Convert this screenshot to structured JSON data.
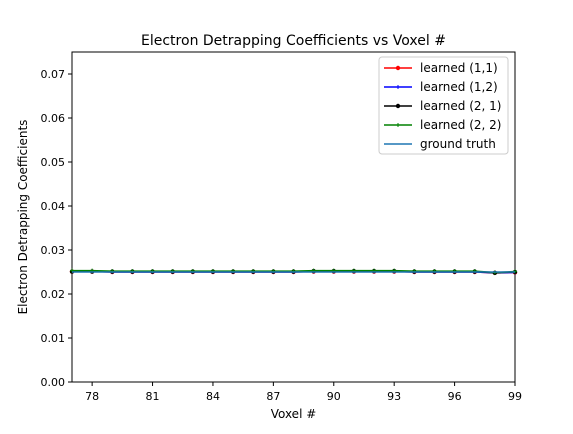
{
  "chart_data": {
    "type": "line",
    "title": "Electron Detrapping Coefficients vs Voxel #",
    "xlabel": "Voxel #",
    "ylabel": "Electron Detrapping Coefficients",
    "xlim": [
      77,
      99
    ],
    "ylim": [
      0.0,
      0.075
    ],
    "xticks": [
      78,
      81,
      84,
      87,
      90,
      93,
      96,
      99
    ],
    "yticks": [
      0.0,
      0.01,
      0.02,
      0.03,
      0.04,
      0.05,
      0.06,
      0.07
    ],
    "ytick_labels": [
      "0.00",
      "0.01",
      "0.02",
      "0.03",
      "0.04",
      "0.05",
      "0.06",
      "0.07"
    ],
    "grid": false,
    "legend_position": "top-right",
    "x": [
      77,
      78,
      79,
      80,
      81,
      82,
      83,
      84,
      85,
      86,
      87,
      88,
      89,
      90,
      91,
      92,
      93,
      94,
      95,
      96,
      97,
      98,
      99
    ],
    "series": [
      {
        "name": "learned (1,1)",
        "color": "#ff0000",
        "marker": "circle",
        "values": [
          0.0251,
          0.0251,
          0.025,
          0.025,
          0.025,
          0.025,
          0.025,
          0.025,
          0.025,
          0.025,
          0.025,
          0.025,
          0.0251,
          0.0251,
          0.0251,
          0.0251,
          0.0251,
          0.025,
          0.025,
          0.025,
          0.025,
          0.0248,
          0.0249
        ]
      },
      {
        "name": "learned (1,2)",
        "color": "#0000ff",
        "marker": "plus",
        "values": [
          0.0251,
          0.0251,
          0.025,
          0.025,
          0.025,
          0.025,
          0.025,
          0.025,
          0.025,
          0.025,
          0.025,
          0.025,
          0.0251,
          0.0251,
          0.0251,
          0.0251,
          0.0251,
          0.025,
          0.025,
          0.025,
          0.025,
          0.0248,
          0.0249
        ]
      },
      {
        "name": "learned (2, 1)",
        "color": "#000000",
        "marker": "circle",
        "values": [
          0.0251,
          0.0251,
          0.0251,
          0.0251,
          0.0251,
          0.0251,
          0.0251,
          0.0251,
          0.0251,
          0.0251,
          0.0251,
          0.0251,
          0.0252,
          0.0252,
          0.0252,
          0.0252,
          0.0252,
          0.0251,
          0.0251,
          0.0251,
          0.0251,
          0.0248,
          0.025
        ]
      },
      {
        "name": "learned (2, 2)",
        "color": "#008000",
        "marker": "plus",
        "values": [
          0.0253,
          0.0253,
          0.0252,
          0.0252,
          0.0252,
          0.0252,
          0.0252,
          0.0252,
          0.0252,
          0.0252,
          0.0252,
          0.0252,
          0.0253,
          0.0253,
          0.0253,
          0.0253,
          0.0253,
          0.0252,
          0.0252,
          0.0252,
          0.0252,
          0.0249,
          0.0251
        ]
      },
      {
        "name": "ground truth",
        "color": "#1f77b4",
        "marker": "none",
        "values": [
          0.025,
          0.025,
          0.025,
          0.025,
          0.025,
          0.025,
          0.025,
          0.025,
          0.025,
          0.025,
          0.025,
          0.025,
          0.025,
          0.025,
          0.025,
          0.025,
          0.025,
          0.025,
          0.025,
          0.025,
          0.025,
          0.025,
          0.025
        ]
      }
    ]
  }
}
